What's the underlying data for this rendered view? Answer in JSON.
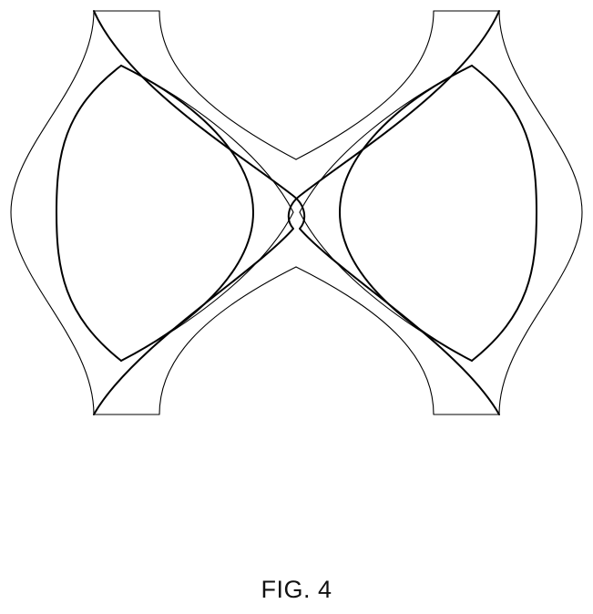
{
  "figure": {
    "caption": "FIG. 4"
  }
}
